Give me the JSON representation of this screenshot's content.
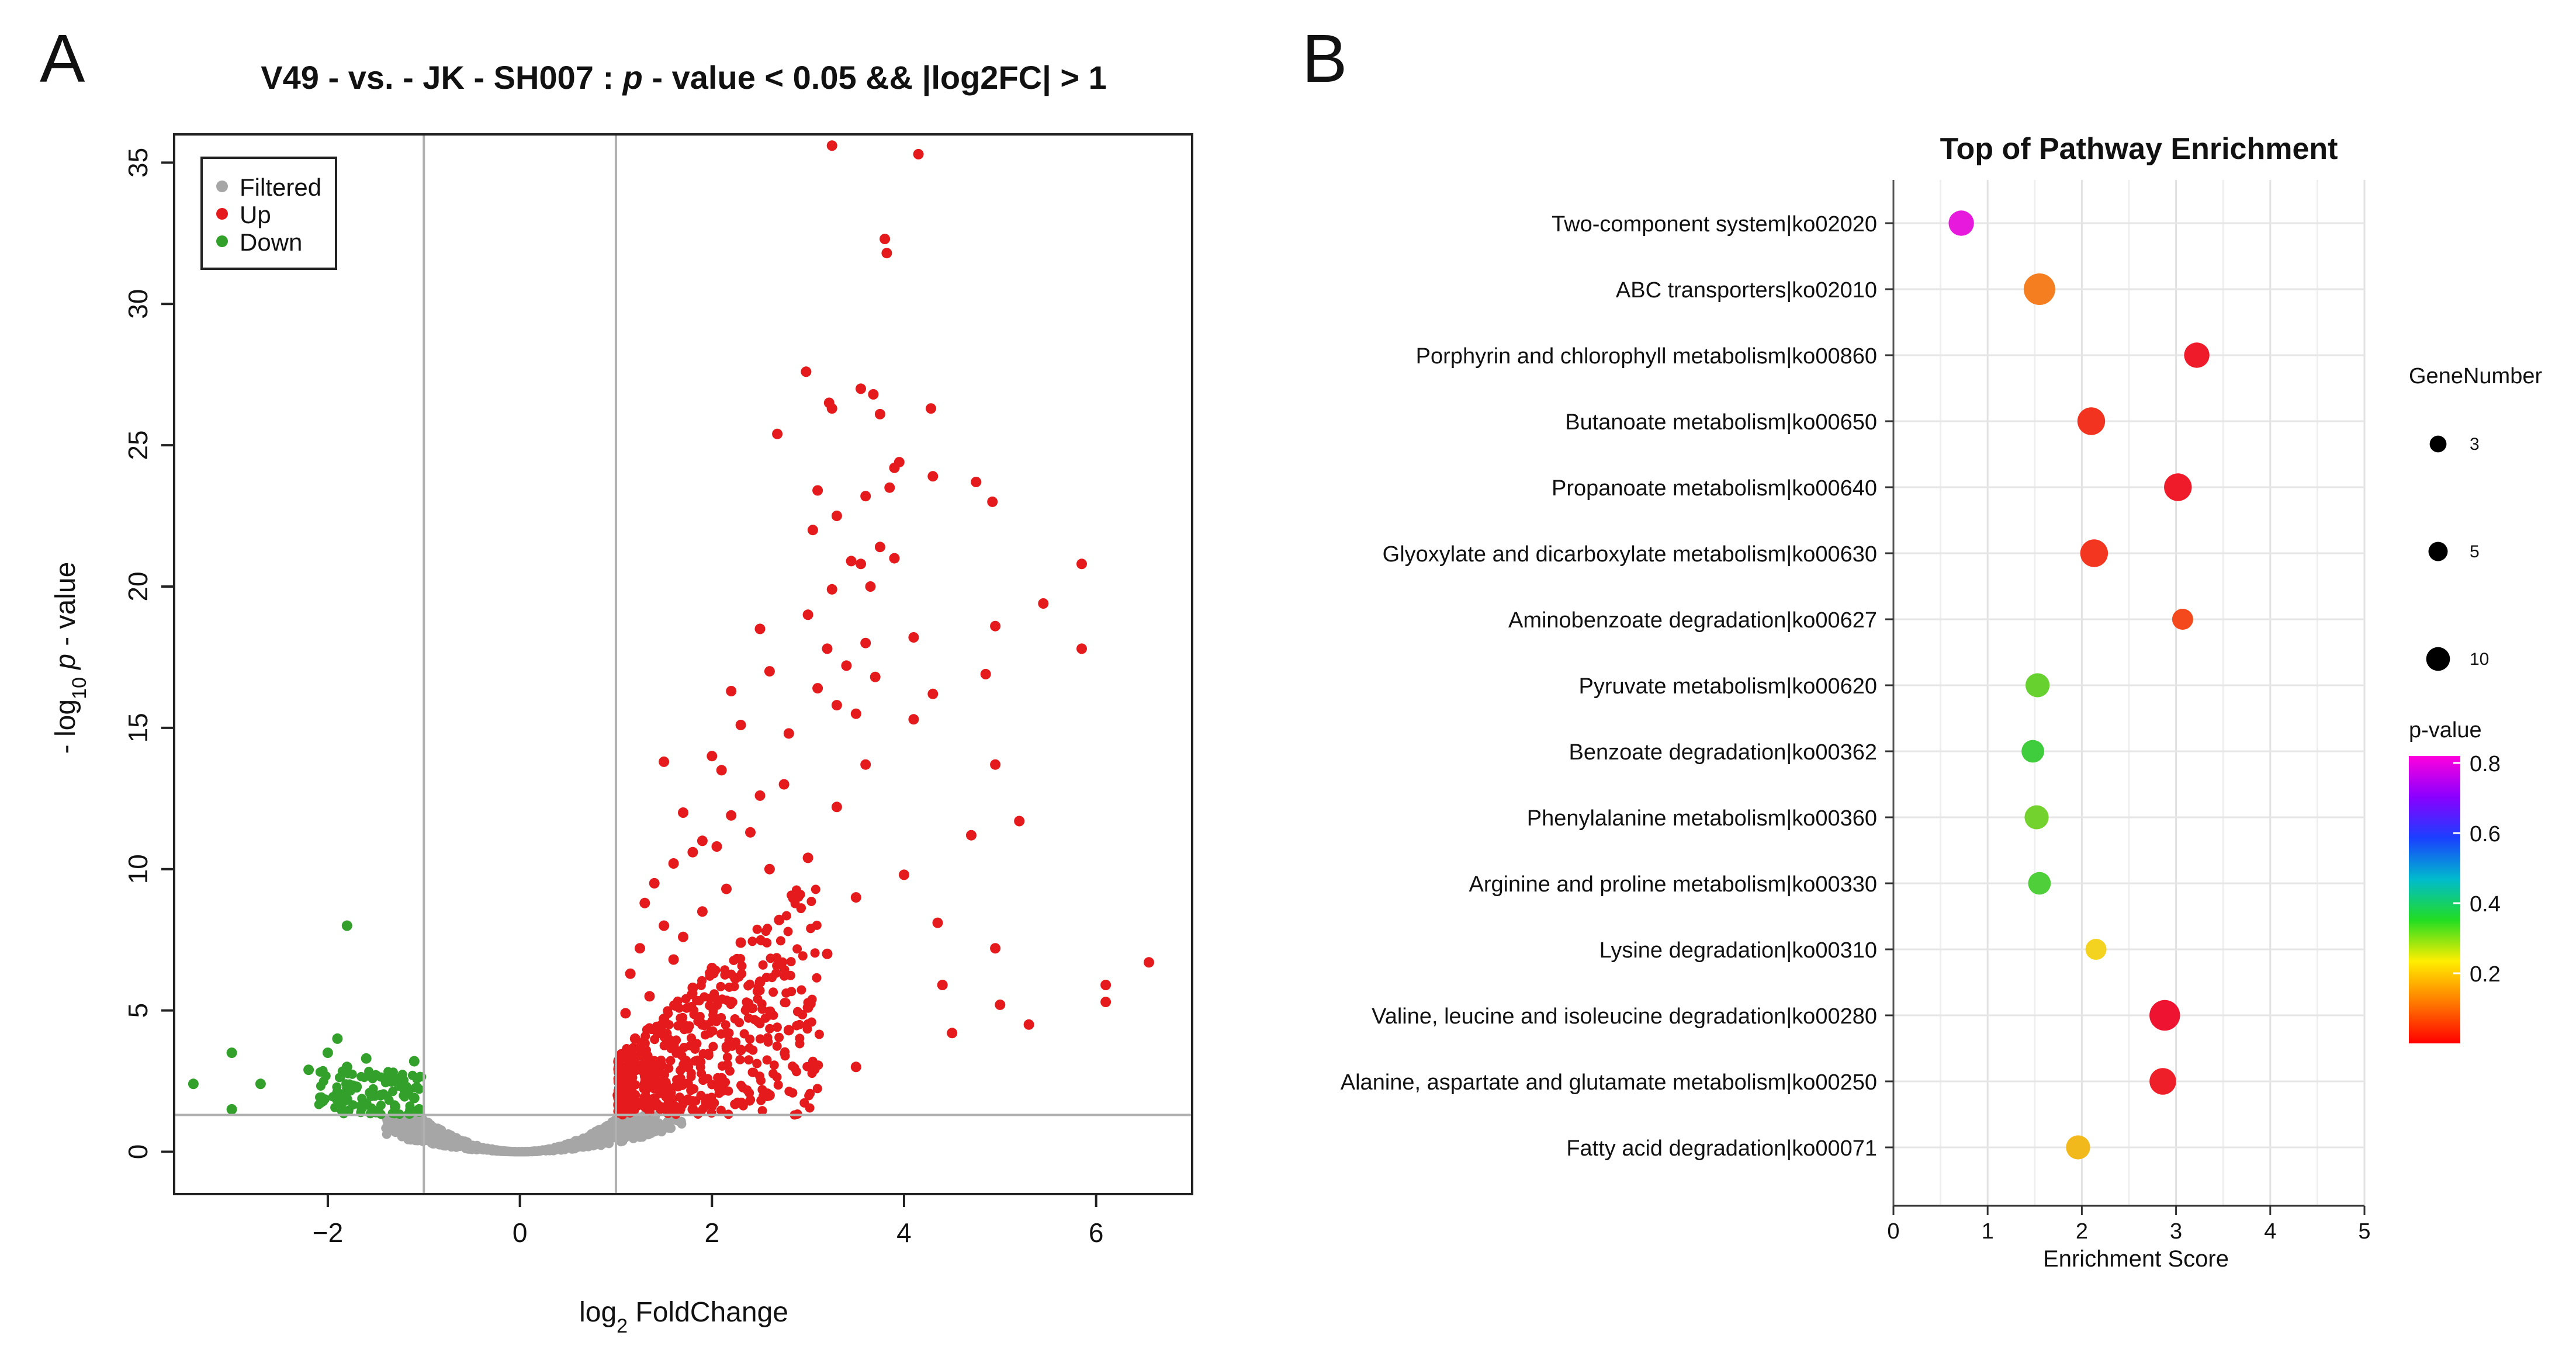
{
  "panels": {
    "a_label": "A",
    "b_label": "B"
  },
  "chart_data": [
    {
      "type": "scatter",
      "title": "V49 - vs. - JK - SH007 : p - value < 0.05 && |log2FC| > 1",
      "title_parts": {
        "before": "V49 - vs. - JK - SH007 : ",
        "italic": "p",
        "after": " - value < 0.05 && |log2FC| > 1"
      },
      "xlabel": {
        "prefix": "log",
        "subscript": "2",
        "suffix": " FoldChange"
      },
      "ylabel": {
        "prefix": "- log",
        "subscript": "10",
        "italic": " p",
        "suffix": " - value"
      },
      "xlim": [
        -3.6,
        7.0
      ],
      "ylim": [
        -1.5,
        36.0
      ],
      "xticks": [
        -2,
        0,
        2,
        4,
        6
      ],
      "xtick_labels": [
        "−2",
        "0",
        "2",
        "4",
        "6"
      ],
      "yticks": [
        0,
        5,
        10,
        15,
        20,
        25,
        30,
        35
      ],
      "ytick_labels": [
        "0",
        "5",
        "10",
        "15",
        "20",
        "25",
        "30",
        "35"
      ],
      "thresholds": {
        "log2fc": [
          -1,
          1
        ],
        "neg_log10_p": 1.3
      },
      "legend": {
        "position": "top-left",
        "items": [
          {
            "label": "Filtered",
            "color": "#a6a6a6"
          },
          {
            "label": "Up",
            "color": "#e41a1c"
          },
          {
            "label": "Down",
            "color": "#33a02c"
          }
        ]
      },
      "series": [
        {
          "name": "Up",
          "color": "#e41a1c",
          "points": [
            [
              3.25,
              35.6
            ],
            [
              4.15,
              35.3
            ],
            [
              3.8,
              32.3
            ],
            [
              3.82,
              31.8
            ],
            [
              2.98,
              27.6
            ],
            [
              3.55,
              27.0
            ],
            [
              3.68,
              26.8
            ],
            [
              3.22,
              26.5
            ],
            [
              3.25,
              26.3
            ],
            [
              3.75,
              26.1
            ],
            [
              4.28,
              26.3
            ],
            [
              2.68,
              25.4
            ],
            [
              3.95,
              24.4
            ],
            [
              3.9,
              24.2
            ],
            [
              4.3,
              23.9
            ],
            [
              3.85,
              23.5
            ],
            [
              3.1,
              23.4
            ],
            [
              3.6,
              23.2
            ],
            [
              4.75,
              23.7
            ],
            [
              4.92,
              23.0
            ],
            [
              3.3,
              22.5
            ],
            [
              3.05,
              22.0
            ],
            [
              3.75,
              21.4
            ],
            [
              3.9,
              21.0
            ],
            [
              3.45,
              20.9
            ],
            [
              3.55,
              20.8
            ],
            [
              3.65,
              20.0
            ],
            [
              5.85,
              20.8
            ],
            [
              3.25,
              19.9
            ],
            [
              3.0,
              19.0
            ],
            [
              5.45,
              19.4
            ],
            [
              4.95,
              18.6
            ],
            [
              4.1,
              18.2
            ],
            [
              2.5,
              18.5
            ],
            [
              3.6,
              18.0
            ],
            [
              3.2,
              17.8
            ],
            [
              5.85,
              17.8
            ],
            [
              3.4,
              17.2
            ],
            [
              3.7,
              16.8
            ],
            [
              2.6,
              17.0
            ],
            [
              4.85,
              16.9
            ],
            [
              3.1,
              16.4
            ],
            [
              2.2,
              16.3
            ],
            [
              4.3,
              16.2
            ],
            [
              3.3,
              15.8
            ],
            [
              3.5,
              15.5
            ],
            [
              4.1,
              15.3
            ],
            [
              2.3,
              15.1
            ],
            [
              2.8,
              14.8
            ],
            [
              2.0,
              14.0
            ],
            [
              1.5,
              13.8
            ],
            [
              3.6,
              13.7
            ],
            [
              4.95,
              13.7
            ],
            [
              2.1,
              13.5
            ],
            [
              2.75,
              13.0
            ],
            [
              2.5,
              12.6
            ],
            [
              3.3,
              12.2
            ],
            [
              1.7,
              12.0
            ],
            [
              2.2,
              11.9
            ],
            [
              5.2,
              11.7
            ],
            [
              2.4,
              11.3
            ],
            [
              1.9,
              11.0
            ],
            [
              4.7,
              11.2
            ],
            [
              2.05,
              10.8
            ],
            [
              1.8,
              10.6
            ],
            [
              3.0,
              10.4
            ],
            [
              1.6,
              10.2
            ],
            [
              2.6,
              10.0
            ],
            [
              4.0,
              9.8
            ],
            [
              1.4,
              9.5
            ],
            [
              2.15,
              9.3
            ],
            [
              3.5,
              9.0
            ],
            [
              1.3,
              8.8
            ],
            [
              1.9,
              8.5
            ],
            [
              2.7,
              8.2
            ],
            [
              1.5,
              8.0
            ],
            [
              4.35,
              8.1
            ],
            [
              1.7,
              7.6
            ],
            [
              2.3,
              7.4
            ],
            [
              1.25,
              7.2
            ],
            [
              3.2,
              7.0
            ],
            [
              4.95,
              7.2
            ],
            [
              1.6,
              6.8
            ],
            [
              2.0,
              6.5
            ],
            [
              6.55,
              6.7
            ],
            [
              1.15,
              6.3
            ],
            [
              2.5,
              6.0
            ],
            [
              1.8,
              5.8
            ],
            [
              6.1,
              5.9
            ],
            [
              4.4,
              5.9
            ],
            [
              1.35,
              5.5
            ],
            [
              2.2,
              5.3
            ],
            [
              3.0,
              5.1
            ],
            [
              6.1,
              5.3
            ],
            [
              5.0,
              5.2
            ],
            [
              1.1,
              4.9
            ],
            [
              1.5,
              4.7
            ],
            [
              1.9,
              4.5
            ],
            [
              5.3,
              4.5
            ],
            [
              2.8,
              4.3
            ],
            [
              4.5,
              4.2
            ],
            [
              1.2,
              4.0
            ],
            [
              1.6,
              3.8
            ],
            [
              2.3,
              3.6
            ],
            [
              1.05,
              3.4
            ],
            [
              1.4,
              3.2
            ],
            [
              1.75,
              3.0
            ],
            [
              3.5,
              3.0
            ],
            [
              1.1,
              2.8
            ],
            [
              2.1,
              2.6
            ],
            [
              1.3,
              2.4
            ],
            [
              1.55,
              2.2
            ],
            [
              1.02,
              2.0
            ],
            [
              2.6,
              2.0
            ],
            [
              1.2,
              1.8
            ],
            [
              1.45,
              1.6
            ],
            [
              1.8,
              1.5
            ],
            [
              1.08,
              1.4
            ]
          ]
        },
        {
          "name": "Down",
          "color": "#33a02c",
          "points": [
            [
              -1.8,
              8.0
            ],
            [
              -1.9,
              4.0
            ],
            [
              -2.0,
              3.5
            ],
            [
              -3.0,
              3.5
            ],
            [
              -1.6,
              3.3
            ],
            [
              -1.8,
              3.0
            ],
            [
              -1.1,
              3.2
            ],
            [
              -2.2,
              2.9
            ],
            [
              -1.5,
              2.7
            ],
            [
              -1.3,
              2.6
            ],
            [
              -3.4,
              2.4
            ],
            [
              -2.7,
              2.4
            ],
            [
              -1.7,
              2.3
            ],
            [
              -1.2,
              2.2
            ],
            [
              -1.9,
              2.1
            ],
            [
              -1.45,
              2.0
            ],
            [
              -1.1,
              1.9
            ],
            [
              -2.05,
              1.8
            ],
            [
              -1.6,
              1.7
            ],
            [
              -1.3,
              1.6
            ],
            [
              -1.05,
              1.5
            ],
            [
              -3.0,
              1.5
            ],
            [
              -1.85,
              1.45
            ],
            [
              -1.5,
              1.4
            ],
            [
              -1.15,
              1.35
            ]
          ]
        }
      ]
    },
    {
      "type": "scatter",
      "title": "Top of Pathway Enrichment",
      "xlabel": "Enrichment Score",
      "xlim": [
        0,
        5
      ],
      "xticks": [
        0,
        1,
        2,
        3,
        4,
        5
      ],
      "xtick_labels": [
        "0",
        "1",
        "2",
        "3",
        "4",
        "5"
      ],
      "categories": [
        "Two-component system|ko02020",
        "ABC transporters|ko02010",
        "Porphyrin and chlorophyll metabolism|ko00860",
        "Butanoate metabolism|ko00650",
        "Propanoate metabolism|ko00640",
        "Glyoxylate and dicarboxylate metabolism|ko00630",
        "Aminobenzoate degradation|ko00627",
        "Pyruvate metabolism|ko00620",
        "Benzoate degradation|ko00362",
        "Phenylalanine metabolism|ko00360",
        "Arginine and proline metabolism|ko00330",
        "Lysine degradation|ko00310",
        "Valine, leucine and isoleucine degradation|ko00280",
        "Alanine, aspartate and glutamate metabolism|ko00250",
        "Fatty acid degradation|ko00071"
      ],
      "points": [
        {
          "score": 0.72,
          "genes": 6,
          "pvalue": 0.79,
          "color": "#e619dc"
        },
        {
          "score": 1.55,
          "genes": 12,
          "pvalue": 0.13,
          "color": "#f57e21"
        },
        {
          "score": 3.22,
          "genes": 6,
          "pvalue": 0.02,
          "color": "#ef1b2a"
        },
        {
          "score": 2.1,
          "genes": 8,
          "pvalue": 0.05,
          "color": "#f2331f"
        },
        {
          "score": 3.02,
          "genes": 8,
          "pvalue": 0.02,
          "color": "#ef1b2a"
        },
        {
          "score": 2.13,
          "genes": 8,
          "pvalue": 0.05,
          "color": "#f2361f"
        },
        {
          "score": 3.07,
          "genes": 3,
          "pvalue": 0.06,
          "color": "#f3491d"
        },
        {
          "score": 1.53,
          "genes": 5,
          "pvalue": 0.33,
          "color": "#66d12f"
        },
        {
          "score": 1.48,
          "genes": 4,
          "pvalue": 0.37,
          "color": "#3fcd3d"
        },
        {
          "score": 1.52,
          "genes": 5,
          "pvalue": 0.33,
          "color": "#74d22e"
        },
        {
          "score": 1.55,
          "genes": 4,
          "pvalue": 0.35,
          "color": "#4fd03a"
        },
        {
          "score": 2.15,
          "genes": 3,
          "pvalue": 0.2,
          "color": "#f4d320"
        },
        {
          "score": 2.88,
          "genes": 11,
          "pvalue": 0.01,
          "color": "#ee1431"
        },
        {
          "score": 2.86,
          "genes": 7,
          "pvalue": 0.03,
          "color": "#ef1f2a"
        },
        {
          "score": 1.96,
          "genes": 5,
          "pvalue": 0.17,
          "color": "#f2b91d"
        }
      ],
      "legend_size": {
        "title": "GeneNumber",
        "items": [
          {
            "label": "3",
            "value": 3
          },
          {
            "label": "5",
            "value": 5
          },
          {
            "label": "10",
            "value": 10
          }
        ]
      },
      "legend_color": {
        "title": "p-value",
        "ticks": [
          0.8,
          0.6,
          0.4,
          0.2
        ],
        "tick_labels": [
          "0.8",
          "0.6",
          "0.4",
          "0.2"
        ],
        "range": [
          0.0,
          0.82
        ],
        "stops": [
          "#ff0000",
          "#ff7a00",
          "#ffee00",
          "#22dd22",
          "#00bbcc",
          "#1a40ff",
          "#8a00ff",
          "#ff00dd"
        ]
      }
    }
  ]
}
